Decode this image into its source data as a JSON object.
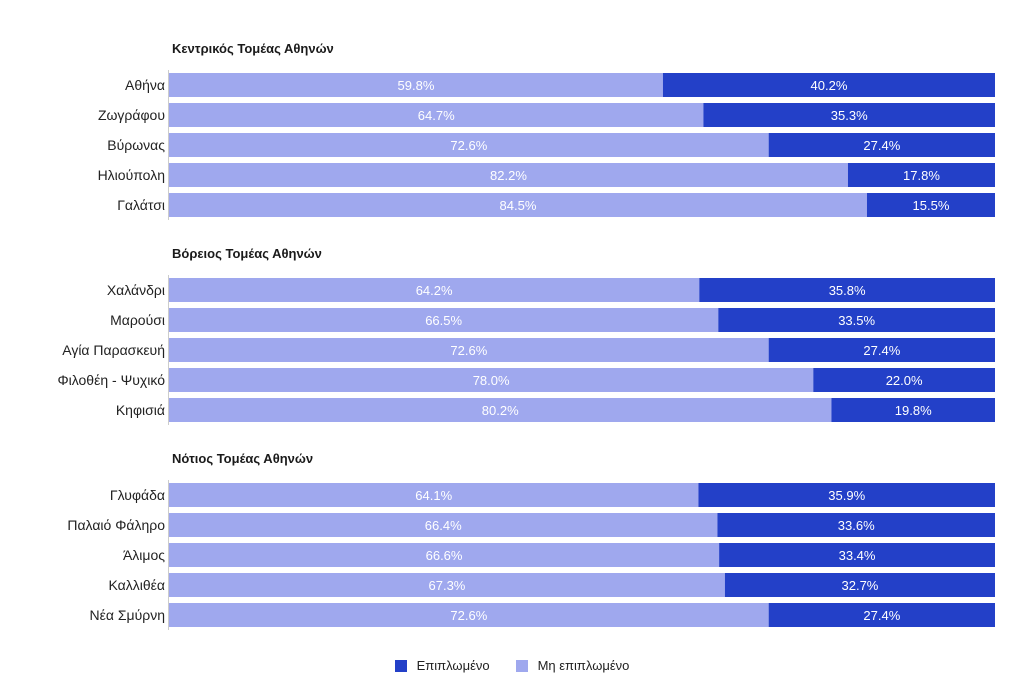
{
  "chart_data": {
    "type": "bar",
    "orientation": "horizontal",
    "stacked": true,
    "xlim": [
      0,
      100
    ],
    "unit": "%",
    "grid": false,
    "legend_position": "bottom-center",
    "colors": {
      "Επιπλωμένο": "#2340c8",
      "Μη επιπλωμένο": "#9fa8ee",
      "value_label": "#ffffff"
    },
    "legend": [
      {
        "name": "Επιπλωμένο",
        "color": "#2340c8"
      },
      {
        "name": "Μη επιπλωμένο",
        "color": "#9fa8ee"
      }
    ],
    "groups": [
      {
        "title": "Κεντρικός Τομέας Αθηνών",
        "rows": [
          {
            "category": "Αθήνα",
            "unfurnished": 59.8,
            "furnished": 40.2,
            "unfurnished_label": "59.8%",
            "furnished_label": "40.2%"
          },
          {
            "category": "Ζωγράφου",
            "unfurnished": 64.7,
            "furnished": 35.3,
            "unfurnished_label": "64.7%",
            "furnished_label": "35.3%"
          },
          {
            "category": "Βύρωνας",
            "unfurnished": 72.6,
            "furnished": 27.4,
            "unfurnished_label": "72.6%",
            "furnished_label": "27.4%"
          },
          {
            "category": "Ηλιούπολη",
            "unfurnished": 82.2,
            "furnished": 17.8,
            "unfurnished_label": "82.2%",
            "furnished_label": "17.8%"
          },
          {
            "category": "Γαλάτσι",
            "unfurnished": 84.5,
            "furnished": 15.5,
            "unfurnished_label": "84.5%",
            "furnished_label": "15.5%"
          }
        ]
      },
      {
        "title": "Βόρειος Τομέας Αθηνών",
        "rows": [
          {
            "category": "Χαλάνδρι",
            "unfurnished": 64.2,
            "furnished": 35.8,
            "unfurnished_label": "64.2%",
            "furnished_label": "35.8%"
          },
          {
            "category": "Μαρούσι",
            "unfurnished": 66.5,
            "furnished": 33.5,
            "unfurnished_label": "66.5%",
            "furnished_label": "33.5%"
          },
          {
            "category": "Αγία Παρασκευή",
            "unfurnished": 72.6,
            "furnished": 27.4,
            "unfurnished_label": "72.6%",
            "furnished_label": "27.4%"
          },
          {
            "category": "Φιλοθέη - Ψυχικό",
            "unfurnished": 78.0,
            "furnished": 22.0,
            "unfurnished_label": "78.0%",
            "furnished_label": "22.0%"
          },
          {
            "category": "Κηφισιά",
            "unfurnished": 80.2,
            "furnished": 19.8,
            "unfurnished_label": "80.2%",
            "furnished_label": "19.8%"
          }
        ]
      },
      {
        "title": "Νότιος Τομέας Αθηνών",
        "rows": [
          {
            "category": "Γλυφάδα",
            "unfurnished": 64.1,
            "furnished": 35.9,
            "unfurnished_label": "64.1%",
            "furnished_label": "35.9%"
          },
          {
            "category": "Παλαιό Φάληρο",
            "unfurnished": 66.4,
            "furnished": 33.6,
            "unfurnished_label": "66.4%",
            "furnished_label": "33.6%"
          },
          {
            "category": "Άλιμος",
            "unfurnished": 66.6,
            "furnished": 33.4,
            "unfurnished_label": "66.6%",
            "furnished_label": "33.4%"
          },
          {
            "category": "Καλλιθέα",
            "unfurnished": 67.3,
            "furnished": 32.7,
            "unfurnished_label": "67.3%",
            "furnished_label": "32.7%"
          },
          {
            "category": "Νέα Σμύρνη",
            "unfurnished": 72.6,
            "furnished": 27.4,
            "unfurnished_label": "72.6%",
            "furnished_label": "27.4%"
          }
        ]
      }
    ]
  }
}
